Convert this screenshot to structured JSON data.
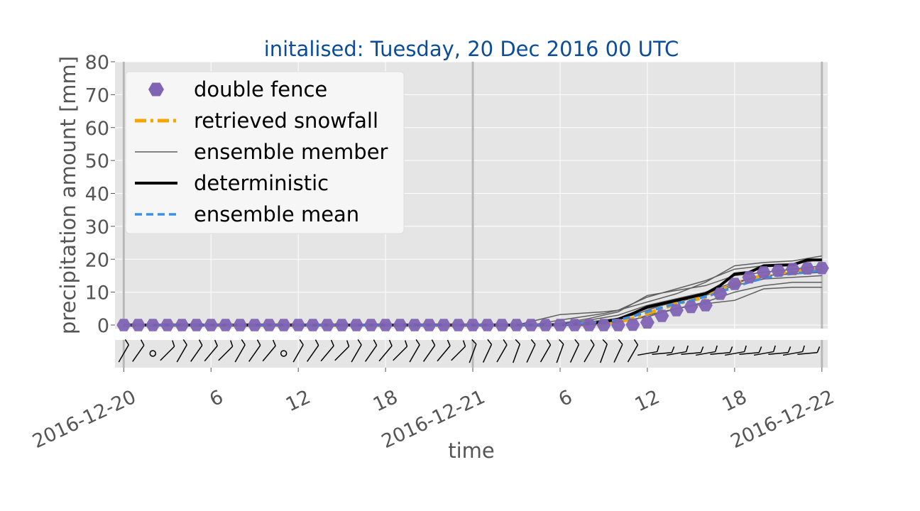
{
  "chart_data": {
    "type": "line",
    "title": "initalised: Tuesday, 20 Dec 2016 00 UTC",
    "xlabel": "time",
    "ylabel": "precipitation amount [mm]",
    "ylim": [
      0,
      80
    ],
    "xlim_hours": [
      -0.6,
      48.4
    ],
    "yticks": [
      0,
      10,
      20,
      30,
      40,
      50,
      60,
      70,
      80
    ],
    "xticks": [
      {
        "hour": 0,
        "label": "2016-12-20",
        "major": true
      },
      {
        "hour": 6,
        "label": "6",
        "major": false
      },
      {
        "hour": 12,
        "label": "12",
        "major": false
      },
      {
        "hour": 18,
        "label": "18",
        "major": false
      },
      {
        "hour": 24,
        "label": "2016-12-21",
        "major": true
      },
      {
        "hour": 30,
        "label": "6",
        "major": false
      },
      {
        "hour": 36,
        "label": "12",
        "major": false
      },
      {
        "hour": 42,
        "label": "18",
        "major": false
      },
      {
        "hour": 48,
        "label": "2016-12-22",
        "major": true
      }
    ],
    "grid": true,
    "legend_position": "top-left",
    "legend": [
      {
        "label": "double fence",
        "style": "hexagon-marker",
        "color": "#8064b4"
      },
      {
        "label": "retrieved snowfall",
        "style": "dash-dot",
        "color": "#f5a400"
      },
      {
        "label": "ensemble member",
        "style": "thin",
        "color": "#5f5f5f"
      },
      {
        "label": "deterministic",
        "style": "thick",
        "color": "#000000"
      },
      {
        "label": "ensemble mean",
        "style": "dashed",
        "color": "#3c8fe6"
      }
    ],
    "series": {
      "double_fence": {
        "x": [
          0,
          1,
          2,
          3,
          4,
          5,
          6,
          7,
          8,
          9,
          10,
          11,
          12,
          13,
          14,
          15,
          16,
          17,
          18,
          19,
          20,
          21,
          22,
          23,
          24,
          25,
          26,
          27,
          28,
          29,
          30,
          31,
          32,
          33,
          34,
          35,
          36,
          37,
          38,
          39,
          40,
          41,
          42,
          43,
          44,
          45,
          46,
          47,
          48
        ],
        "y": [
          0,
          0,
          0,
          0,
          0,
          0,
          0,
          0,
          0,
          0,
          0,
          0,
          0,
          0,
          0,
          0,
          0,
          0,
          0,
          0,
          0,
          0,
          0,
          0,
          0,
          0,
          0,
          0,
          0,
          0,
          0,
          0,
          0,
          0,
          0,
          0.1,
          0.8,
          2.8,
          4.5,
          5.5,
          6.0,
          9.5,
          12.5,
          14.5,
          16.0,
          16.5,
          17.0,
          17.2,
          17.3
        ]
      },
      "retrieved_snowfall": {
        "x": [
          0,
          26,
          30,
          32,
          34,
          35,
          36,
          37,
          38,
          39,
          40,
          41,
          42,
          43,
          44,
          45,
          46,
          47,
          48
        ],
        "y": [
          0,
          0,
          0,
          0.2,
          1.0,
          2.0,
          3.5,
          5.0,
          6.5,
          7.5,
          8.5,
          10.5,
          12.5,
          14.0,
          15.0,
          15.8,
          16.3,
          16.8,
          17.0
        ]
      },
      "deterministic": {
        "x": [
          0,
          28,
          30,
          32,
          33,
          34,
          35,
          36,
          37,
          38,
          39,
          40,
          41,
          42,
          43,
          44,
          45,
          46,
          47,
          48
        ],
        "y": [
          0,
          0,
          0.1,
          0.4,
          1.0,
          1.8,
          3.5,
          5.5,
          6.5,
          7.5,
          8.5,
          9.5,
          12.0,
          15.5,
          16.0,
          18.0,
          18.2,
          18.3,
          19.8,
          19.8
        ]
      },
      "ensemble_mean": {
        "x": [
          0,
          28,
          30,
          32,
          34,
          35,
          36,
          37,
          38,
          39,
          40,
          41,
          42,
          43,
          44,
          45,
          46,
          47,
          48
        ],
        "y": [
          0,
          0,
          0.1,
          0.6,
          1.6,
          2.6,
          4.0,
          5.3,
          6.5,
          7.5,
          8.6,
          10.0,
          11.6,
          13.0,
          14.2,
          15.0,
          15.6,
          16.1,
          16.6
        ]
      },
      "ensemble_members": [
        {
          "x": [
            0,
            27,
            30,
            33,
            34,
            36,
            38,
            40,
            42,
            44,
            46,
            48
          ],
          "y": [
            0,
            0,
            3.2,
            4.0,
            4.5,
            7.0,
            9.5,
            13.0,
            18.0,
            19.0,
            19.5,
            21.0
          ]
        },
        {
          "x": [
            0,
            28,
            30,
            33,
            34,
            36,
            38,
            40,
            42,
            44,
            46,
            48
          ],
          "y": [
            0,
            0,
            1.5,
            3.5,
            4.5,
            8.5,
            11.0,
            13.5,
            17.0,
            18.0,
            18.5,
            20.0
          ]
        },
        {
          "x": [
            0,
            28,
            30,
            32,
            34,
            36,
            38,
            40,
            42,
            44,
            46,
            48
          ],
          "y": [
            0,
            0,
            0.5,
            2.0,
            4.0,
            9.0,
            10.5,
            12.0,
            15.0,
            16.0,
            17.0,
            18.0
          ]
        },
        {
          "x": [
            0,
            28,
            30,
            32,
            34,
            36,
            38,
            40,
            42,
            44,
            46,
            48
          ],
          "y": [
            0,
            0,
            0.3,
            1.5,
            3.0,
            6.0,
            8.0,
            10.0,
            13.0,
            15.0,
            15.5,
            16.0
          ]
        },
        {
          "x": [
            0,
            29,
            30,
            32,
            34,
            36,
            38,
            40,
            42,
            44,
            46,
            48
          ],
          "y": [
            0,
            0,
            0.2,
            1.0,
            2.0,
            5.0,
            7.0,
            9.0,
            12.0,
            14.0,
            14.5,
            15.0
          ]
        },
        {
          "x": [
            0,
            29,
            31,
            33,
            35,
            36,
            38,
            40,
            42,
            44,
            46,
            48
          ],
          "y": [
            0,
            0,
            0.1,
            0.5,
            1.5,
            3.0,
            5.0,
            7.0,
            10.0,
            12.0,
            13.0,
            13.0
          ]
        },
        {
          "x": [
            0,
            30,
            32,
            34,
            36,
            38,
            40,
            42,
            44,
            46,
            48
          ],
          "y": [
            0,
            0,
            0.3,
            1.0,
            2.5,
            5.0,
            6.5,
            7.5,
            11.0,
            11.5,
            11.5
          ]
        },
        {
          "x": [
            0,
            29,
            31,
            33,
            35,
            37,
            39,
            41,
            43,
            45,
            47,
            48
          ],
          "y": [
            0,
            0,
            0.4,
            1.2,
            3.0,
            6.0,
            8.0,
            11.0,
            14.0,
            15.5,
            16.5,
            17.0
          ]
        }
      ]
    },
    "wind_panel": {
      "present": true,
      "description_of_marks": "wind barbs every hour along a shared time axis"
    }
  }
}
